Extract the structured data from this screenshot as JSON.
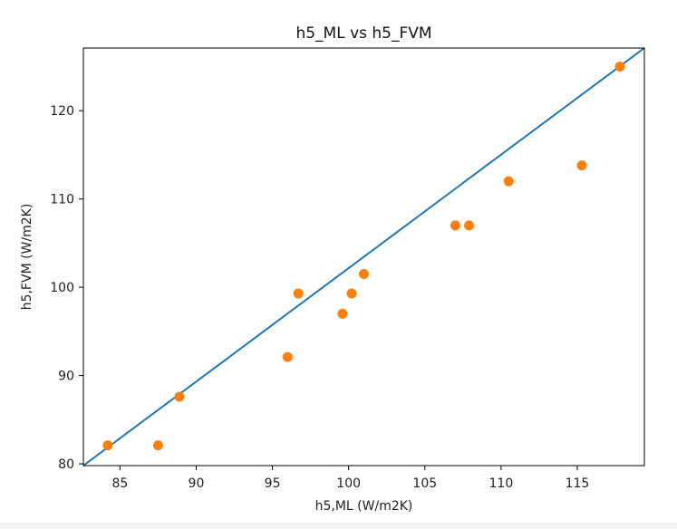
{
  "chart_data": {
    "type": "scatter",
    "title": "h5_ML vs h5_FVM",
    "xlabel": "h5,ML (W/m2K)",
    "ylabel": "h5,FVM (W/m2K)",
    "xlim": [
      82.6,
      119.4
    ],
    "ylim": [
      79.8,
      127.1
    ],
    "x_ticks": [
      85,
      90,
      95,
      100,
      105,
      110,
      115
    ],
    "y_ticks": [
      80,
      90,
      100,
      110,
      120
    ],
    "grid": false,
    "legend": "none",
    "series": [
      {
        "kind": "reference_line",
        "x": [
          82.6,
          119.4
        ],
        "y": [
          79.8,
          127.1
        ],
        "color": "#1f77b4"
      },
      {
        "kind": "points",
        "color": "#ff7f0e",
        "x": [
          84.2,
          87.5,
          88.9,
          96.0,
          96.7,
          99.6,
          100.2,
          101.0,
          107.0,
          107.9,
          110.5,
          115.3,
          117.8
        ],
        "y": [
          82.1,
          82.1,
          87.6,
          92.1,
          99.3,
          97.0,
          99.3,
          101.5,
          107.0,
          107.0,
          112.0,
          113.8,
          125.0
        ]
      }
    ]
  }
}
